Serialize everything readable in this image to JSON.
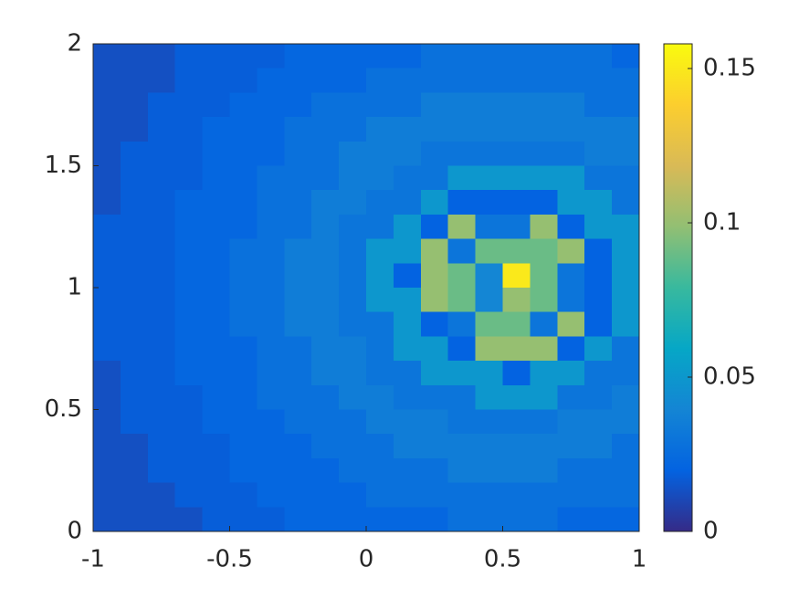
{
  "chart_data": {
    "type": "heatmap",
    "x": [
      -0.95,
      -0.85,
      -0.75,
      -0.65,
      -0.55,
      -0.45,
      -0.35,
      -0.25,
      -0.15,
      -0.05,
      0.05,
      0.15,
      0.25,
      0.35,
      0.45,
      0.55,
      0.65,
      0.75,
      0.85,
      0.95
    ],
    "y": [
      1.95,
      1.85,
      1.75,
      1.65,
      1.55,
      1.45,
      1.35,
      1.25,
      1.15,
      1.05,
      0.95,
      0.85,
      0.75,
      0.65,
      0.55,
      0.45,
      0.35,
      0.25,
      0.15,
      0.05
    ],
    "z": [
      [
        0.013,
        0.013,
        0.013,
        0.018,
        0.018,
        0.018,
        0.018,
        0.022,
        0.022,
        0.022,
        0.022,
        0.022,
        0.028,
        0.028,
        0.028,
        0.028,
        0.028,
        0.028,
        0.028,
        0.022
      ],
      [
        0.013,
        0.013,
        0.013,
        0.018,
        0.018,
        0.018,
        0.022,
        0.022,
        0.022,
        0.022,
        0.028,
        0.028,
        0.028,
        0.028,
        0.028,
        0.028,
        0.028,
        0.028,
        0.028,
        0.028
      ],
      [
        0.013,
        0.013,
        0.018,
        0.018,
        0.018,
        0.022,
        0.022,
        0.022,
        0.028,
        0.028,
        0.028,
        0.028,
        0.035,
        0.035,
        0.035,
        0.035,
        0.035,
        0.035,
        0.028,
        0.028
      ],
      [
        0.013,
        0.013,
        0.018,
        0.018,
        0.022,
        0.022,
        0.022,
        0.028,
        0.028,
        0.028,
        0.035,
        0.035,
        0.035,
        0.035,
        0.035,
        0.035,
        0.035,
        0.035,
        0.035,
        0.035
      ],
      [
        0.013,
        0.018,
        0.018,
        0.018,
        0.022,
        0.022,
        0.022,
        0.028,
        0.028,
        0.035,
        0.035,
        0.035,
        0.03,
        0.03,
        0.03,
        0.03,
        0.03,
        0.03,
        0.035,
        0.035
      ],
      [
        0.013,
        0.018,
        0.018,
        0.018,
        0.022,
        0.022,
        0.028,
        0.028,
        0.028,
        0.035,
        0.035,
        0.03,
        0.03,
        0.05,
        0.05,
        0.05,
        0.05,
        0.05,
        0.03,
        0.03
      ],
      [
        0.013,
        0.018,
        0.018,
        0.022,
        0.022,
        0.022,
        0.028,
        0.028,
        0.035,
        0.035,
        0.03,
        0.03,
        0.05,
        0.02,
        0.02,
        0.02,
        0.02,
        0.05,
        0.05,
        0.03
      ],
      [
        0.018,
        0.018,
        0.018,
        0.022,
        0.022,
        0.022,
        0.028,
        0.028,
        0.035,
        0.03,
        0.03,
        0.05,
        0.02,
        0.1,
        0.03,
        0.03,
        0.1,
        0.02,
        0.05,
        0.05
      ],
      [
        0.018,
        0.018,
        0.018,
        0.022,
        0.022,
        0.028,
        0.028,
        0.035,
        0.035,
        0.03,
        0.05,
        0.05,
        0.1,
        0.03,
        0.09,
        0.09,
        0.09,
        0.1,
        0.02,
        0.05
      ],
      [
        0.018,
        0.018,
        0.018,
        0.022,
        0.022,
        0.028,
        0.028,
        0.035,
        0.035,
        0.03,
        0.05,
        0.02,
        0.1,
        0.09,
        0.04,
        0.15,
        0.09,
        0.03,
        0.02,
        0.05
      ],
      [
        0.018,
        0.018,
        0.018,
        0.022,
        0.022,
        0.028,
        0.028,
        0.035,
        0.035,
        0.03,
        0.05,
        0.05,
        0.1,
        0.09,
        0.04,
        0.1,
        0.09,
        0.03,
        0.02,
        0.05
      ],
      [
        0.018,
        0.018,
        0.018,
        0.022,
        0.022,
        0.028,
        0.028,
        0.035,
        0.035,
        0.03,
        0.03,
        0.05,
        0.02,
        0.03,
        0.09,
        0.09,
        0.03,
        0.1,
        0.02,
        0.05
      ],
      [
        0.018,
        0.018,
        0.018,
        0.022,
        0.022,
        0.022,
        0.028,
        0.028,
        0.035,
        0.035,
        0.03,
        0.05,
        0.05,
        0.02,
        0.1,
        0.1,
        0.1,
        0.02,
        0.05,
        0.03
      ],
      [
        0.013,
        0.018,
        0.018,
        0.022,
        0.022,
        0.022,
        0.028,
        0.028,
        0.035,
        0.035,
        0.03,
        0.03,
        0.05,
        0.05,
        0.05,
        0.02,
        0.05,
        0.05,
        0.03,
        0.03
      ],
      [
        0.013,
        0.018,
        0.018,
        0.018,
        0.022,
        0.022,
        0.028,
        0.028,
        0.028,
        0.035,
        0.035,
        0.03,
        0.03,
        0.03,
        0.05,
        0.05,
        0.05,
        0.03,
        0.03,
        0.035
      ],
      [
        0.013,
        0.018,
        0.018,
        0.018,
        0.022,
        0.022,
        0.022,
        0.028,
        0.028,
        0.028,
        0.035,
        0.035,
        0.035,
        0.03,
        0.03,
        0.03,
        0.03,
        0.035,
        0.035,
        0.035
      ],
      [
        0.013,
        0.013,
        0.018,
        0.018,
        0.018,
        0.022,
        0.022,
        0.022,
        0.028,
        0.028,
        0.028,
        0.035,
        0.035,
        0.035,
        0.035,
        0.035,
        0.035,
        0.035,
        0.035,
        0.028
      ],
      [
        0.013,
        0.013,
        0.018,
        0.018,
        0.018,
        0.022,
        0.022,
        0.022,
        0.022,
        0.028,
        0.028,
        0.028,
        0.028,
        0.035,
        0.035,
        0.035,
        0.035,
        0.028,
        0.028,
        0.028
      ],
      [
        0.013,
        0.013,
        0.013,
        0.018,
        0.018,
        0.018,
        0.022,
        0.022,
        0.022,
        0.022,
        0.028,
        0.028,
        0.028,
        0.028,
        0.028,
        0.028,
        0.028,
        0.028,
        0.028,
        0.028
      ],
      [
        0.013,
        0.013,
        0.013,
        0.013,
        0.018,
        0.018,
        0.018,
        0.022,
        0.022,
        0.022,
        0.022,
        0.022,
        0.022,
        0.028,
        0.028,
        0.028,
        0.028,
        0.022,
        0.022,
        0.022
      ]
    ],
    "xlim": [
      -1,
      1
    ],
    "ylim": [
      0,
      2
    ],
    "xticks": [
      -1,
      -0.5,
      0,
      0.5,
      1
    ],
    "yticks": [
      0,
      0.5,
      1,
      1.5,
      2
    ],
    "clim": [
      0,
      0.158
    ],
    "cticks": [
      0,
      0.05,
      0.1,
      0.15
    ],
    "colormap": [
      "#352a87",
      "#0363e1",
      "#1485d4",
      "#06a7c6",
      "#38b99e",
      "#92bf73",
      "#d9ba56",
      "#fcce2e",
      "#f9fb0e"
    ]
  }
}
